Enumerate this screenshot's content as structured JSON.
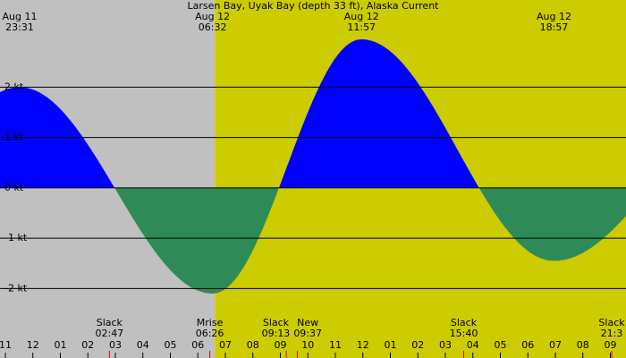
{
  "chart_data": {
    "type": "current",
    "title": "Larsen Bay, Uyak Bay (depth 33 ft), Alaska Current",
    "ylim": [
      -2.9,
      3.5
    ],
    "yticks": [
      {
        "value": 2,
        "label": "2 kt"
      },
      {
        "value": 1,
        "label": "1 kt"
      },
      {
        "value": 0,
        "label": "0 kt"
      },
      {
        "value": -1,
        "label": "-1 kt"
      },
      {
        "value": -2,
        "label": "-2 kt"
      }
    ],
    "extremes": [
      {
        "date": "Aug 11",
        "time": "23:31",
        "value": 2.0
      },
      {
        "date": "Aug 12",
        "time": "06:32",
        "value": -2.1
      },
      {
        "date": "Aug 12",
        "time": "11:57",
        "value": 2.95
      },
      {
        "date": "Aug 12",
        "time": "18:57",
        "value": -1.45
      }
    ],
    "events": [
      {
        "label": "Slack",
        "time": "02:47"
      },
      {
        "label": "Mrise",
        "time": "06:26"
      },
      {
        "label": "Slack",
        "time": "09:13"
      },
      {
        "label": "New",
        "time": "09:37"
      },
      {
        "label": "Slack",
        "time": "15:40"
      },
      {
        "label": "Slack",
        "time": "21:3"
      }
    ],
    "hour_labels": [
      "11",
      "12",
      "01",
      "02",
      "03",
      "04",
      "05",
      "06",
      "07",
      "08",
      "09",
      "10",
      "11",
      "12",
      "01",
      "02",
      "03",
      "04",
      "05",
      "06",
      "07",
      "08",
      "09"
    ],
    "daylight_start": "06:37",
    "flood_color": "#0000ff",
    "ebb_color": "#2e8b57",
    "night_color": "#c0c0c0",
    "day_color": "#cccc00",
    "grid": true
  }
}
